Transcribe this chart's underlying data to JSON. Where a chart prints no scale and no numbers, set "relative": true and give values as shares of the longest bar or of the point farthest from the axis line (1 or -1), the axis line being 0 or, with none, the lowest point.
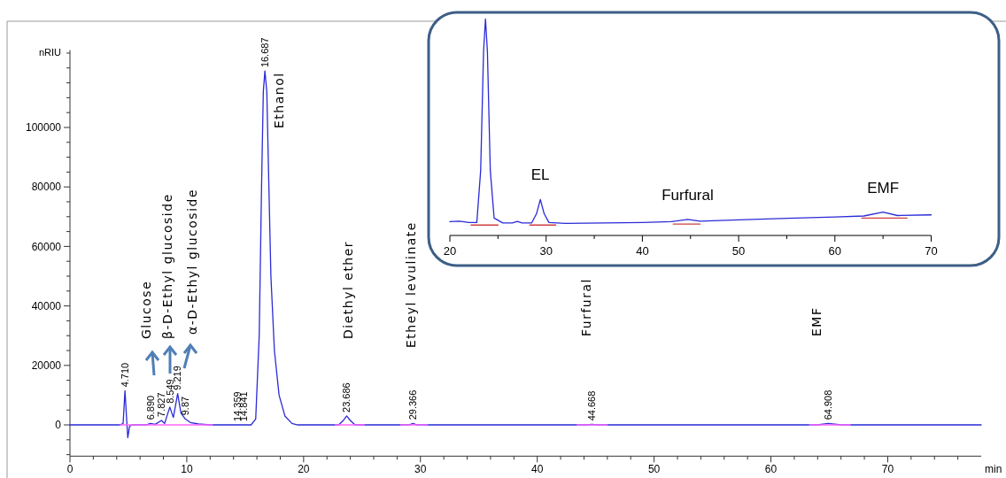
{
  "chart_data": [
    {
      "type": "line",
      "xlabel": "min",
      "ylabel": "nRIU",
      "xlim": [
        0,
        78
      ],
      "ylim": [
        -10500,
        126000
      ],
      "xticks": [
        0,
        {
          "value": 2,
          "label": null
        },
        {
          "value": 4,
          "label": null
        },
        {
          "value": 6,
          "label": null
        },
        {
          "value": 8,
          "label": null
        },
        10,
        {
          "value": 12,
          "label": null
        },
        {
          "value": 14,
          "label": null
        },
        {
          "value": 16,
          "label": null
        },
        {
          "value": 18,
          "label": null
        },
        20,
        {
          "value": 22,
          "label": null
        },
        {
          "value": 24,
          "label": null
        },
        {
          "value": 26,
          "label": null
        },
        {
          "value": 28,
          "label": null
        },
        30,
        {
          "value": 32,
          "label": null
        },
        {
          "value": 34,
          "label": null
        },
        {
          "value": 36,
          "label": null
        },
        {
          "value": 38,
          "label": null
        },
        40,
        {
          "value": 42,
          "label": null
        },
        {
          "value": 44,
          "label": null
        },
        {
          "value": 46,
          "label": null
        },
        {
          "value": 48,
          "label": null
        },
        50,
        {
          "value": 52,
          "label": null
        },
        {
          "value": 54,
          "label": null
        },
        {
          "value": 56,
          "label": null
        },
        {
          "value": 58,
          "label": null
        },
        60,
        {
          "value": 62,
          "label": null
        },
        {
          "value": 64,
          "label": null
        },
        {
          "value": 66,
          "label": null
        },
        {
          "value": 68,
          "label": null
        },
        70,
        {
          "value": 72,
          "label": null
        },
        {
          "value": 74,
          "label": null
        },
        {
          "value": 76,
          "label": null
        }
      ],
      "yticks": [
        {
          "value": -10000,
          "label": null
        },
        {
          "value": -5000,
          "label": null
        },
        0,
        {
          "value": 5000,
          "label": null
        },
        {
          "value": 10000,
          "label": null
        },
        {
          "value": 15000,
          "label": null
        },
        20000,
        {
          "value": 25000,
          "label": null
        },
        {
          "value": 30000,
          "label": null
        },
        {
          "value": 35000,
          "label": null
        },
        40000,
        {
          "value": 45000,
          "label": null
        },
        {
          "value": 50000,
          "label": null
        },
        {
          "value": 55000,
          "label": null
        },
        60000,
        {
          "value": 65000,
          "label": null
        },
        {
          "value": 70000,
          "label": null
        },
        {
          "value": 75000,
          "label": null
        },
        80000,
        {
          "value": 85000,
          "label": null
        },
        {
          "value": 90000,
          "label": null
        },
        {
          "value": 95000,
          "label": null
        },
        100000,
        {
          "value": 105000,
          "label": null
        },
        {
          "value": 110000,
          "label": null
        },
        {
          "value": 115000,
          "label": null
        },
        {
          "value": 120000,
          "label": null
        },
        {
          "value": 125000,
          "label": null
        }
      ],
      "series": [
        {
          "color": "#2a2ad8",
          "x": [
            0,
            4.3,
            4.55,
            4.71,
            4.85,
            4.95,
            5.1,
            5.3,
            6.5,
            6.89,
            7.3,
            7.827,
            8.1,
            8.549,
            8.85,
            9.219,
            9.5,
            9.87,
            10.3,
            11,
            12,
            15.5,
            15.9,
            16.2,
            16.4,
            16.55,
            16.687,
            16.85,
            17,
            17.2,
            17.5,
            17.9,
            18.4,
            19,
            19.5,
            23,
            23.4,
            23.686,
            24,
            24.4,
            29,
            29.366,
            29.7,
            44.2,
            44.668,
            45.1,
            64,
            64.908,
            66,
            78
          ],
          "values": [
            0,
            0,
            500,
            11500,
            2000,
            -4300,
            -500,
            0,
            0,
            500,
            200,
            1500,
            500,
            6000,
            2500,
            10500,
            4000,
            2000,
            800,
            300,
            0,
            0,
            2000,
            30000,
            80000,
            112000,
            119000,
            112000,
            85000,
            50000,
            25000,
            10000,
            3000,
            500,
            0,
            0,
            1500,
            3000,
            1500,
            0,
            0,
            500,
            0,
            0,
            200,
            0,
            0,
            500,
            0,
            0
          ]
        },
        {
          "color": "#ff66ff",
          "x": [
            4.3,
            12.2
          ],
          "values": [
            0,
            0
          ]
        },
        {
          "color": "#ff66ff",
          "x": [
            22.7,
            25.2
          ],
          "values": [
            0,
            0
          ]
        },
        {
          "color": "#ff66ff",
          "x": [
            28.3,
            30.6
          ],
          "values": [
            0,
            0
          ]
        },
        {
          "color": "#ff66ff",
          "x": [
            43.4,
            46
          ],
          "values": [
            0,
            0
          ]
        },
        {
          "color": "#ff66ff",
          "x": [
            63.3,
            66.8
          ],
          "values": [
            0,
            0
          ]
        }
      ],
      "annotations": [
        {
          "text": "4.710",
          "x": 4.71,
          "y": 11500
        },
        {
          "text": "6.890",
          "x": 6.89,
          "y": 500
        },
        {
          "text": "7.827",
          "x": 7.827,
          "y": 1500
        },
        {
          "text": "8.549",
          "x": 8.549,
          "y": 6000
        },
        {
          "text": "9.219",
          "x": 9.219,
          "y": 10500
        },
        {
          "text": "9.87",
          "x": 9.87,
          "y": 2000
        },
        {
          "text": "14.359",
          "x": 14.359,
          "y": 0
        },
        {
          "text": "14.841",
          "x": 14.841,
          "y": 0
        },
        {
          "text": "16.687",
          "x": 16.687,
          "y": 119000
        },
        {
          "text": "23.686",
          "x": 23.686,
          "y": 3000
        },
        {
          "text": "29.366",
          "x": 29.366,
          "y": 500
        },
        {
          "text": "44.668",
          "x": 44.668,
          "y": 200
        },
        {
          "text": "64.908",
          "x": 64.908,
          "y": 500
        },
        "Glucose",
        "β-D-Ethyl glucoside",
        "α-D-Ethyl glucoside",
        "Ethanol",
        "Diethyl ether",
        "Etheyl levulinate",
        "Furfural",
        "EMF"
      ]
    },
    {
      "type": "line",
      "relative": true,
      "xlim": [
        20,
        70
      ],
      "xticks": [
        20,
        {
          "value": 25,
          "label": null
        },
        30,
        {
          "value": 35,
          "label": null
        },
        40,
        {
          "value": 45,
          "label": null
        },
        50,
        {
          "value": 55,
          "label": null
        },
        60,
        {
          "value": 65,
          "label": null
        },
        70
      ],
      "series": [
        {
          "color": "#2a2ad8",
          "x": [
            20,
            21,
            22,
            22.8,
            23.2,
            23.5,
            23.7,
            23.9,
            24.2,
            24.6,
            25.5,
            26.5,
            27,
            27.5,
            28.5,
            29,
            29.4,
            29.8,
            30.3,
            32,
            36,
            40,
            43,
            44.7,
            46,
            50,
            55,
            60,
            63,
            65,
            66.5,
            70
          ],
          "values": [
            0.064,
            0.066,
            0.06,
            0.06,
            0.3,
            0.85,
            1,
            0.85,
            0.3,
            0.08,
            0.058,
            0.058,
            0.065,
            0.058,
            0.058,
            0.1,
            0.166,
            0.1,
            0.06,
            0.056,
            0.058,
            0.06,
            0.064,
            0.074,
            0.066,
            0.072,
            0.079,
            0.085,
            0.09,
            0.108,
            0.092,
            0.095
          ]
        },
        {
          "color": "#d04040",
          "x": [
            22.2,
            25
          ],
          "values": [
            0.048,
            0.048
          ]
        },
        {
          "color": "#d04040",
          "x": [
            28.3,
            31
          ],
          "values": [
            0.048,
            0.048
          ]
        },
        {
          "color": "#d04040",
          "x": [
            43.2,
            46
          ],
          "values": [
            0.053,
            0.053
          ]
        },
        {
          "color": "#d04040",
          "x": [
            62.8,
            67.5
          ],
          "values": [
            0.08,
            0.08
          ]
        }
      ],
      "annotations": [
        {
          "text": "EL",
          "x": 29.4,
          "y": 0.166
        },
        {
          "text": "Furfural",
          "x": 44.7,
          "y": 0.074
        },
        {
          "text": "EMF",
          "x": 65,
          "y": 0.108
        }
      ]
    }
  ]
}
